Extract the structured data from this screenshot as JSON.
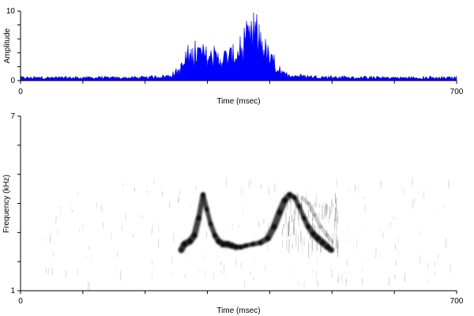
{
  "chart_data": [
    {
      "type": "area",
      "xlabel": "Time (msec)",
      "ylabel": "Amplitude",
      "xlim": [
        0,
        700
      ],
      "ylim": [
        0,
        10
      ],
      "x_ticks": [
        0,
        100,
        200,
        300,
        400,
        500,
        600,
        700
      ],
      "x_tick_labels": [
        "0",
        "700"
      ],
      "y_ticks": [
        0,
        2,
        4,
        6,
        8,
        10
      ],
      "y_tick_labels": [
        "0",
        "10"
      ],
      "color": "#0000ff",
      "envelope": {
        "x": [
          0,
          50,
          100,
          150,
          200,
          240,
          255,
          270,
          285,
          300,
          315,
          330,
          345,
          355,
          365,
          375,
          385,
          400,
          420,
          450,
          500,
          550,
          600,
          650,
          700
        ],
        "y": [
          0.6,
          0.6,
          0.6,
          0.6,
          0.6,
          1.0,
          2.2,
          4.8,
          5.8,
          5.0,
          4.5,
          4.8,
          5.4,
          6.0,
          8.2,
          9.2,
          8.4,
          4.5,
          1.4,
          0.9,
          0.7,
          0.6,
          0.6,
          0.6,
          0.6
        ]
      }
    },
    {
      "type": "heatmap",
      "xlabel": "Time (msec)",
      "ylabel": "Frequency (kHz)",
      "xlim": [
        0,
        700
      ],
      "ylim": [
        1,
        7
      ],
      "x_ticks": [
        0,
        100,
        200,
        300,
        400,
        500,
        600,
        700
      ],
      "x_tick_labels": [
        "0",
        "700"
      ],
      "y_ticks": [
        1,
        2,
        3,
        4,
        5,
        6,
        7
      ],
      "y_tick_labels": [
        "1",
        "7"
      ],
      "color": "#000000",
      "main_trace": {
        "t": [
          258,
          263,
          272,
          279,
          286,
          293,
          299,
          305,
          312,
          318,
          325,
          332,
          339,
          346,
          354,
          362,
          373,
          385,
          397,
          407,
          416,
          424,
          432,
          440,
          447,
          455,
          462,
          470,
          477,
          485,
          493,
          499
        ],
        "f": [
          2.4,
          2.6,
          2.7,
          2.9,
          3.5,
          4.3,
          3.8,
          3.3,
          2.9,
          2.7,
          2.6,
          2.6,
          2.55,
          2.5,
          2.5,
          2.55,
          2.6,
          2.65,
          2.8,
          3.2,
          3.7,
          4.1,
          4.3,
          4.2,
          3.9,
          3.5,
          3.2,
          2.95,
          2.8,
          2.65,
          2.5,
          2.4
        ]
      },
      "faint_trace": {
        "t": [
          452,
          462,
          472,
          482,
          492,
          500
        ],
        "f": [
          4.2,
          4.0,
          3.6,
          3.2,
          2.9,
          2.7
        ]
      }
    }
  ]
}
